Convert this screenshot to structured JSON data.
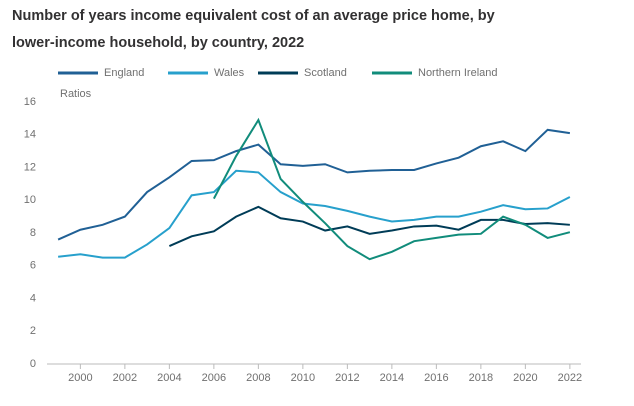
{
  "chart_data": {
    "type": "line",
    "title": [
      "Number of years income equivalent cost of an average price home, by",
      "lower-income household, by country, 2022"
    ],
    "y_label": "Ratios",
    "x": [
      1999,
      2000,
      2001,
      2002,
      2003,
      2004,
      2005,
      2006,
      2007,
      2008,
      2009,
      2010,
      2011,
      2012,
      2013,
      2014,
      2015,
      2016,
      2017,
      2018,
      2019,
      2020,
      2021,
      2022
    ],
    "series": [
      {
        "name": "England",
        "color": "#206095",
        "values": [
          7.6,
          8.2,
          8.5,
          9.0,
          10.5,
          11.4,
          12.4,
          12.45,
          13.0,
          13.4,
          12.2,
          12.1,
          12.2,
          11.7,
          11.8,
          11.85,
          11.85,
          12.25,
          12.6,
          13.3,
          13.6,
          13.0,
          14.3,
          14.1
        ]
      },
      {
        "name": "Wales",
        "color": "#27a0cc",
        "values": [
          6.55,
          6.7,
          6.5,
          6.5,
          7.3,
          8.3,
          10.3,
          10.5,
          11.8,
          11.7,
          10.5,
          9.8,
          9.65,
          9.35,
          9.0,
          8.7,
          8.8,
          9.0,
          9.0,
          9.3,
          9.7,
          9.45,
          9.5,
          10.2
        ]
      },
      {
        "name": "Scotland",
        "color": "#003c57",
        "values": [
          null,
          null,
          null,
          null,
          null,
          7.2,
          7.8,
          8.1,
          9.0,
          9.6,
          8.9,
          8.7,
          8.15,
          8.4,
          7.95,
          8.15,
          8.4,
          8.45,
          8.2,
          8.8,
          8.8,
          8.55,
          8.6,
          8.5
        ]
      },
      {
        "name": "Northern Ireland",
        "color": "#118c7b",
        "values": [
          null,
          null,
          null,
          null,
          null,
          null,
          null,
          10.1,
          12.7,
          14.9,
          11.3,
          9.9,
          8.6,
          7.2,
          6.4,
          6.85,
          7.5,
          7.7,
          7.9,
          7.95,
          9.0,
          8.5,
          7.7,
          8.05
        ]
      }
    ],
    "xlim": [
      1998.5,
      2022.5
    ],
    "xticks": [
      2000,
      2002,
      2004,
      2006,
      2008,
      2010,
      2012,
      2014,
      2016,
      2018,
      2020,
      2022
    ],
    "ylim": [
      0,
      16
    ],
    "yticks": [
      0,
      2,
      4,
      6,
      8,
      10,
      12,
      14,
      16
    ],
    "grid": false
  }
}
